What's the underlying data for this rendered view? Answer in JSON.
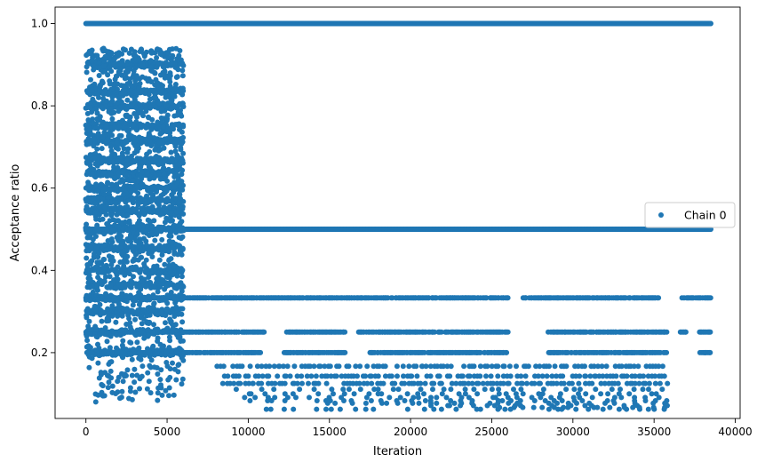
{
  "chart_data": {
    "type": "scatter",
    "xlabel": "Iteration",
    "ylabel": "Acceptance ratio",
    "xlim": [
      -1900,
      40300
    ],
    "ylim": [
      0.04,
      1.04
    ],
    "xticks": [
      0,
      5000,
      10000,
      15000,
      20000,
      25000,
      30000,
      35000,
      40000
    ],
    "yticks": [
      0.2,
      0.4,
      0.6,
      0.8,
      1.0
    ],
    "xtick_labels": [
      "0",
      "5000",
      "10000",
      "15000",
      "20000",
      "25000",
      "30000",
      "35000",
      "40000"
    ],
    "ytick_labels": [
      "0.2",
      "0.4",
      "0.6",
      "0.8",
      "1.0"
    ],
    "grid": false,
    "legend_position": "center-right",
    "color": "#1f77b4",
    "series": [
      {
        "name": "Chain 0",
        "bands": [
          {
            "y": 1.0,
            "x_start": 0,
            "x_end": 38500,
            "density": "continuous"
          },
          {
            "y": 0.5,
            "x_start": 0,
            "x_end": 38500,
            "density": "continuous"
          },
          {
            "y": 0.3333,
            "x_start": 0,
            "x_end": 38500,
            "density": "dense",
            "gaps": [
              [
                26000,
                26900
              ],
              [
                35300,
                36700
              ]
            ]
          },
          {
            "y": 0.25,
            "x_start": 0,
            "x_end": 38500,
            "density": "dense",
            "gaps": [
              [
                11000,
                12300
              ],
              [
                16000,
                16800
              ],
              [
                26000,
                28400
              ],
              [
                35800,
                36600
              ],
              [
                37000,
                37800
              ]
            ]
          },
          {
            "y": 0.2,
            "x_start": 0,
            "x_end": 38500,
            "density": "dense",
            "gaps": [
              [
                10800,
                12200
              ],
              [
                16000,
                17500
              ],
              [
                26000,
                28500
              ],
              [
                35800,
                37800
              ]
            ]
          },
          {
            "y": 0.1667,
            "x_start": 7800,
            "x_end": 35700,
            "density": "medium"
          },
          {
            "y": 0.1429,
            "x_start": 8600,
            "x_end": 35700,
            "density": "medium"
          },
          {
            "y": 0.125,
            "x_start": 8500,
            "x_end": 35800,
            "density": "medium"
          },
          {
            "y": 0.1111,
            "x_start": 9500,
            "x_end": 35800,
            "density": "sparse"
          },
          {
            "y": 0.1,
            "x_start": 9800,
            "x_end": 35800,
            "density": "sparse"
          },
          {
            "y": 0.0909,
            "x_start": 10000,
            "x_end": 35800,
            "density": "sparse"
          },
          {
            "y": 0.0833,
            "x_start": 10300,
            "x_end": 35800,
            "density": "sparse"
          },
          {
            "y": 0.0769,
            "x_start": 15000,
            "x_end": 35800,
            "density": "sparse"
          },
          {
            "y": 0.0714,
            "x_start": 20800,
            "x_end": 35900,
            "density": "sparse"
          },
          {
            "y": 0.0667,
            "x_start": 25500,
            "x_end": 35900,
            "density": "sparse"
          },
          {
            "y": 0.0625,
            "x_start": 10900,
            "x_end": 35900,
            "density": "sparse"
          }
        ],
        "early_phase": {
          "x_start": 0,
          "x_end": 6000,
          "y_range": [
            0.07,
            0.94
          ],
          "dense_levels": [
            0.9,
            0.8333,
            0.8,
            0.75,
            0.7143,
            0.6667,
            0.6364,
            0.6,
            0.5714,
            0.5455,
            0.5,
            0.4545,
            0.4,
            0.3636,
            0.3333,
            0.3,
            0.25,
            0.2
          ]
        }
      }
    ]
  }
}
